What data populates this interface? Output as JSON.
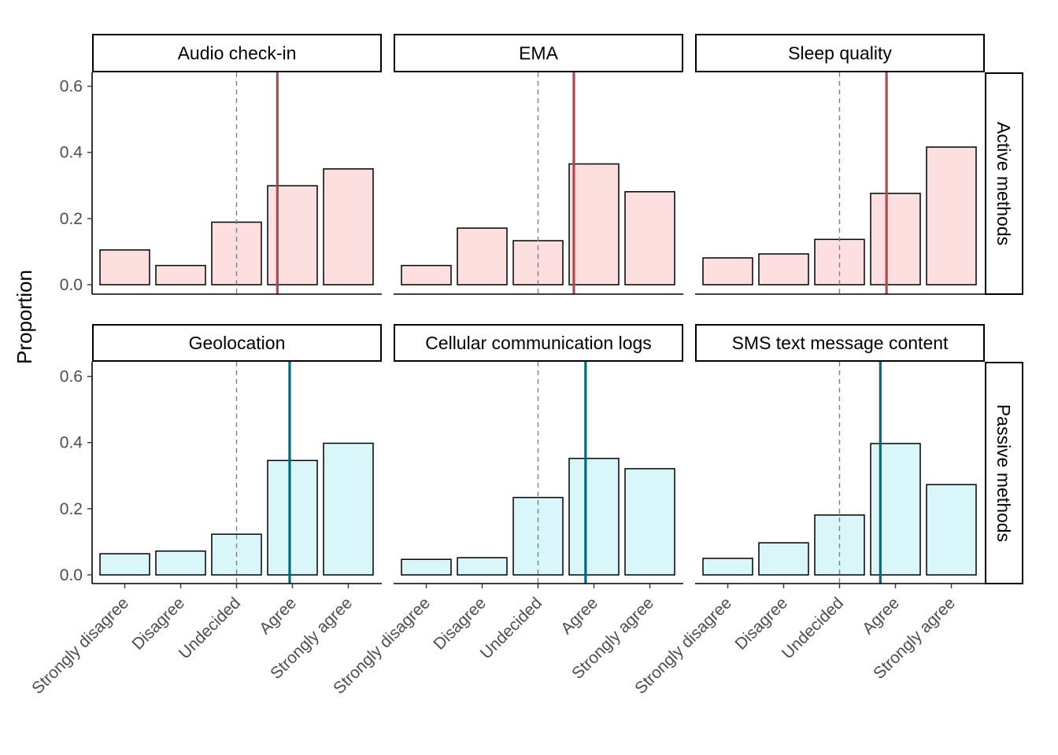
{
  "chart_data": {
    "type": "bar",
    "ylabel": "Proportion",
    "ylim": [
      0,
      0.63
    ],
    "yticks": [
      "0.0",
      "0.2",
      "0.4",
      "0.6"
    ],
    "categories": [
      "Strongly disagree",
      "Disagree",
      "Undecided",
      "Agree",
      "Strongly agree"
    ],
    "row_labels": [
      "Active methods",
      "Passive methods"
    ],
    "colors": {
      "active_fill": "#fddfdf",
      "passive_fill": "#d9f6fb",
      "active_line": "#b04a4a",
      "passive_line": "#006a80"
    },
    "panels": [
      {
        "title": "Audio check-in",
        "group": "active",
        "values": [
          0.105,
          0.058,
          0.189,
          0.299,
          0.35
        ],
        "mean_position": 3.73
      },
      {
        "title": "EMA",
        "group": "active",
        "values": [
          0.058,
          0.171,
          0.133,
          0.365,
          0.281
        ],
        "mean_position": 3.64
      },
      {
        "title": "Sleep quality",
        "group": "active",
        "values": [
          0.081,
          0.093,
          0.137,
          0.276,
          0.416
        ],
        "mean_position": 3.84
      },
      {
        "title": "Geolocation",
        "group": "passive",
        "values": [
          0.064,
          0.072,
          0.123,
          0.346,
          0.398
        ],
        "mean_position": 3.95
      },
      {
        "title": "Cellular communication logs",
        "group": "passive",
        "values": [
          0.047,
          0.052,
          0.234,
          0.352,
          0.321
        ],
        "mean_position": 3.85
      },
      {
        "title": "SMS text message content",
        "group": "passive",
        "values": [
          0.05,
          0.097,
          0.181,
          0.397,
          0.273
        ],
        "mean_position": 3.73
      }
    ],
    "reference_line": "Undecided"
  }
}
